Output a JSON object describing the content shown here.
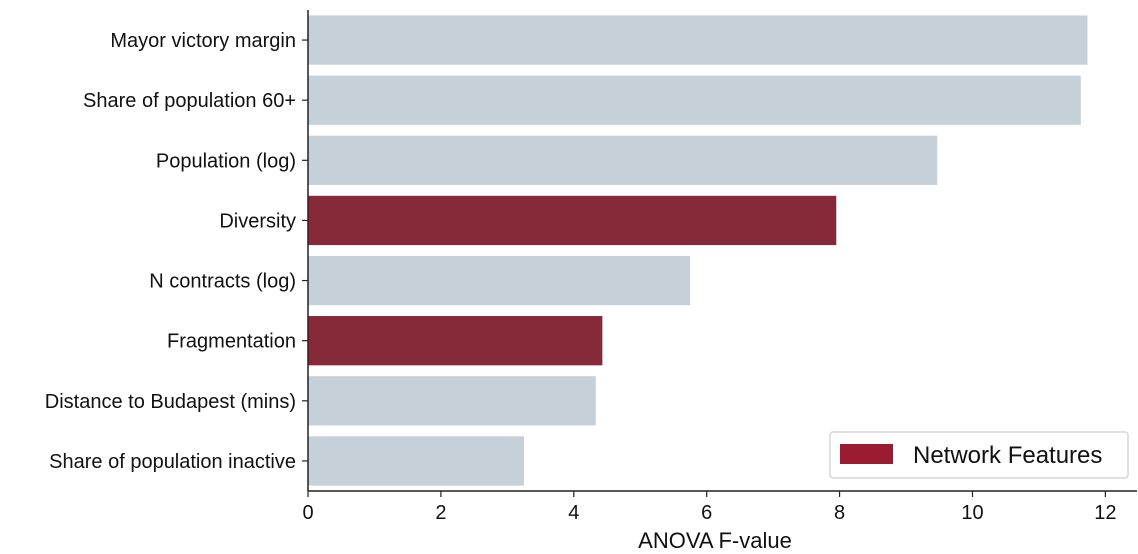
{
  "chart_data": {
    "type": "bar",
    "orientation": "horizontal",
    "categories": [
      "Mayor victory margin",
      "Share of population 60+",
      "Population (log)",
      "Diversity",
      "N contracts (log)",
      "Fragmentation",
      "Distance to Budapest (mins)",
      "Share of population inactive"
    ],
    "values": [
      11.73,
      11.63,
      9.47,
      7.95,
      5.75,
      4.43,
      4.33,
      3.25
    ],
    "highlighted": [
      false,
      false,
      false,
      true,
      false,
      true,
      false,
      false
    ],
    "xlabel": "ANOVA F-value",
    "xlim": [
      0,
      12.25
    ],
    "xticks": [
      0,
      2,
      4,
      6,
      8,
      10,
      12
    ],
    "grid": false,
    "legend": {
      "label": "Network Features",
      "placement": "bottom-right"
    },
    "colors": {
      "default_bar": "#c5d0d9",
      "highlight_bar": "#862a3a",
      "legend_swatch": "#9b1b30"
    }
  }
}
